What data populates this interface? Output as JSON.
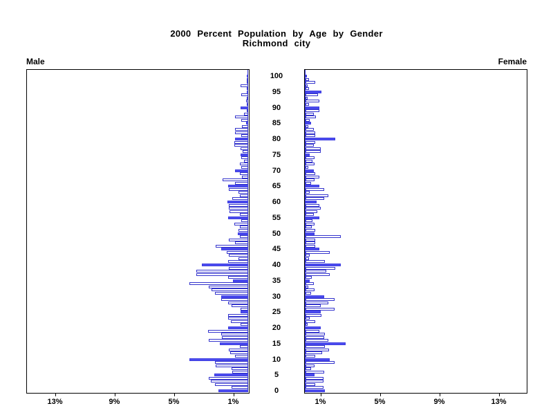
{
  "title": {
    "line1": "2000 Percent Population by Age by Gender",
    "line2": "Richmond city"
  },
  "panel_labels": {
    "left": "Male",
    "right": "Female"
  },
  "chart_data": {
    "type": "bar",
    "subtype": "population-pyramid",
    "title": "2000 Percent Population by Age by Gender",
    "subtitle": "Richmond city",
    "legend": "none",
    "grid": false,
    "x_axis": {
      "unit": "%",
      "left_panel_tick_labels": [
        "13%",
        "9%",
        "5%",
        "1%"
      ],
      "left_panel_tick_values": [
        13,
        9,
        5,
        1
      ],
      "right_panel_tick_labels": [
        "1%",
        "5%",
        "9%",
        "13%"
      ],
      "right_panel_tick_values": [
        1,
        5,
        9,
        13
      ],
      "range_percent": [
        0,
        15
      ]
    },
    "y_axis": {
      "age_tick_labels": [
        "0",
        "5",
        "10",
        "15",
        "20",
        "25",
        "30",
        "35",
        "40",
        "45",
        "50",
        "55",
        "60",
        "65",
        "70",
        "75",
        "80",
        "85",
        "90",
        "95",
        "100"
      ],
      "age_range": [
        0,
        100
      ],
      "note": "one bar per single year of age; ages at multiples of 5 drawn as solid filled bars, other ages as outlined hollow bars"
    },
    "series": [
      {
        "name": "Male",
        "side": "left",
        "values_percent_by_age_0_to_100": [
          2.0,
          1.1,
          2.25,
          2.5,
          2.65,
          2.3,
          1.05,
          1.1,
          2.2,
          2.25,
          3.95,
          0.9,
          1.2,
          1.3,
          0.55,
          1.9,
          2.65,
          1.75,
          1.8,
          2.7,
          1.35,
          0.5,
          1.15,
          1.35,
          1.35,
          0.5,
          0.5,
          1.1,
          1.35,
          1.8,
          1.8,
          2.25,
          2.45,
          2.65,
          3.95,
          1.0,
          1.35,
          3.5,
          3.5,
          1.3,
          3.1,
          1.35,
          0.65,
          1.3,
          1.45,
          1.8,
          2.2,
          0.9,
          1.3,
          0.55,
          0.7,
          0.65,
          0.55,
          0.95,
          0.45,
          1.35,
          0.55,
          1.25,
          1.3,
          1.3,
          1.4,
          1.05,
          0.55,
          0.65,
          1.3,
          1.35,
          0.9,
          1.7,
          0.4,
          0.55,
          0.9,
          0.45,
          0.55,
          0.3,
          0.45,
          0.5,
          0.35,
          0.5,
          0.95,
          0.95,
          0.9,
          0.45,
          0.9,
          0.9,
          0.4,
          0.15,
          0.45,
          0.9,
          0.3,
          0.1,
          0.5,
          0.1,
          0.15,
          0.1,
          0.45,
          0.1,
          0.05,
          0.5,
          0.05,
          0.05,
          0.1
        ]
      },
      {
        "name": "Female",
        "side": "right",
        "values_percent_by_age_0_to_100": [
          1.3,
          1.2,
          0.65,
          1.2,
          1.2,
          0.6,
          1.25,
          0.35,
          0.6,
          1.95,
          1.65,
          0.65,
          1.1,
          1.6,
          1.3,
          2.7,
          1.55,
          1.25,
          1.3,
          0.95,
          1.0,
          0.15,
          0.65,
          0.3,
          1.05,
          1.0,
          1.95,
          1.0,
          1.55,
          1.95,
          1.27,
          0.35,
          0.6,
          0.2,
          0.55,
          0.3,
          0.4,
          1.65,
          1.4,
          2.0,
          2.35,
          1.3,
          0.25,
          0.3,
          1.65,
          0.95,
          0.65,
          0.65,
          0.65,
          2.35,
          0.6,
          0.65,
          0.4,
          0.6,
          0.45,
          0.95,
          0.55,
          0.77,
          1.0,
          0.95,
          0.75,
          1.25,
          1.55,
          0.3,
          1.25,
          0.95,
          0.35,
          0.6,
          0.95,
          0.65,
          0.55,
          0.2,
          0.6,
          0.45,
          0.6,
          0.3,
          1.0,
          1.0,
          0.55,
          0.65,
          2.0,
          0.65,
          0.65,
          0.55,
          0.2,
          0.35,
          0.3,
          0.7,
          0.55,
          0.93,
          0.95,
          0.25,
          0.93,
          0.15,
          0.82,
          1.05,
          0.22,
          0.15,
          0.65,
          0.25,
          0.1
        ]
      }
    ],
    "colors": {
      "solid_bar_fill": "#4d4df0",
      "bar_outline": "#3333cc",
      "baseline": "#3535d6",
      "axis": "#000000",
      "text": "#000000",
      "background": "#ffffff"
    }
  }
}
